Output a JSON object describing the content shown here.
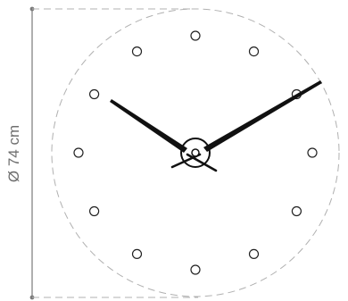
{
  "dimension": {
    "label": "Ø 74 cm"
  },
  "clock": {
    "hour_markers": 12,
    "hour_hand_time": 10,
    "minute_hand_time": 10
  },
  "colors": {
    "dimension_line": "#7a7a7a",
    "dimension_text": "#6f6f6f",
    "outline_dashed": "#b0b0b0",
    "marker_stroke": "#222222",
    "hand_color": "#111111",
    "background": "#ffffff"
  }
}
